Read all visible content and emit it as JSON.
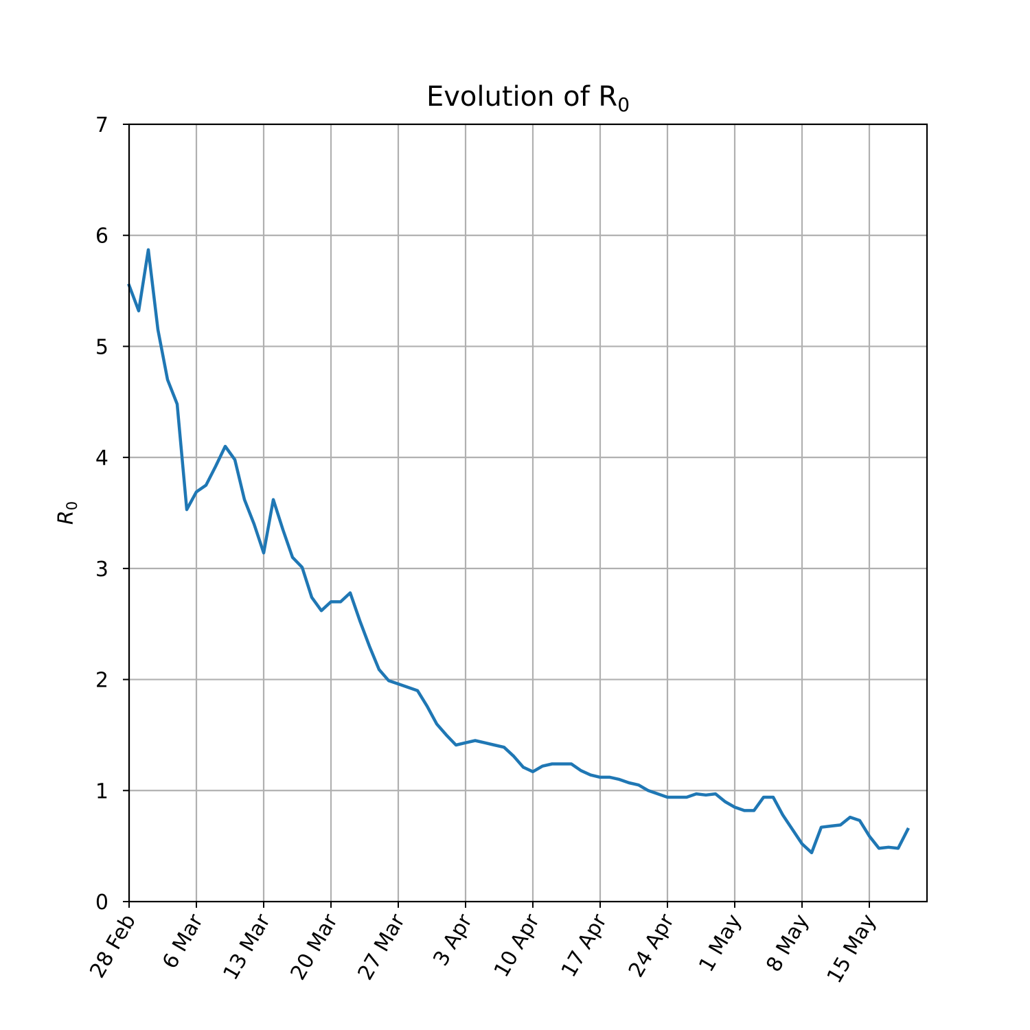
{
  "chart_data": {
    "type": "line",
    "title": "Evolution of R",
    "title_subscript": "0",
    "xlabel": "",
    "ylabel": "R",
    "ylabel_subscript": "0",
    "ylim": [
      0,
      7
    ],
    "xlim": [
      "2020-02-28",
      "2020-05-21"
    ],
    "grid": true,
    "legend": "none",
    "series_color": "#1f77b4",
    "y_ticks": [
      "0",
      "1",
      "2",
      "3",
      "4",
      "5",
      "6",
      "7"
    ],
    "x_ticks": [
      {
        "date": "2020-02-28",
        "label": "28 Feb"
      },
      {
        "date": "2020-03-06",
        "label": "6 Mar"
      },
      {
        "date": "2020-03-13",
        "label": "13 Mar"
      },
      {
        "date": "2020-03-20",
        "label": "20 Mar"
      },
      {
        "date": "2020-03-27",
        "label": "27 Mar"
      },
      {
        "date": "2020-04-03",
        "label": "3 Apr"
      },
      {
        "date": "2020-04-10",
        "label": "10 Apr"
      },
      {
        "date": "2020-04-17",
        "label": "17 Apr"
      },
      {
        "date": "2020-04-24",
        "label": "24 Apr"
      },
      {
        "date": "2020-05-01",
        "label": "1 May"
      },
      {
        "date": "2020-05-08",
        "label": "8 May"
      },
      {
        "date": "2020-05-15",
        "label": "15 May"
      }
    ],
    "series": [
      {
        "x": [
          "2020-02-28",
          "2020-02-29",
          "2020-03-01",
          "2020-03-02",
          "2020-03-03",
          "2020-03-04",
          "2020-03-05",
          "2020-03-06",
          "2020-03-07",
          "2020-03-08",
          "2020-03-09",
          "2020-03-10",
          "2020-03-11",
          "2020-03-12",
          "2020-03-13",
          "2020-03-14",
          "2020-03-15",
          "2020-03-16",
          "2020-03-17",
          "2020-03-18",
          "2020-03-19",
          "2020-03-20",
          "2020-03-21",
          "2020-03-22",
          "2020-03-23",
          "2020-03-24",
          "2020-03-25",
          "2020-03-26",
          "2020-03-27",
          "2020-03-28",
          "2020-03-29",
          "2020-03-30",
          "2020-03-31",
          "2020-04-01",
          "2020-04-02",
          "2020-04-03",
          "2020-04-04",
          "2020-04-05",
          "2020-04-06",
          "2020-04-07",
          "2020-04-08",
          "2020-04-09",
          "2020-04-10",
          "2020-04-11",
          "2020-04-12",
          "2020-04-13",
          "2020-04-14",
          "2020-04-15",
          "2020-04-16",
          "2020-04-17",
          "2020-04-18",
          "2020-04-19",
          "2020-04-20",
          "2020-04-21",
          "2020-04-22",
          "2020-04-23",
          "2020-04-24",
          "2020-04-25",
          "2020-04-26",
          "2020-04-27",
          "2020-04-28",
          "2020-04-29",
          "2020-04-30",
          "2020-05-01",
          "2020-05-02",
          "2020-05-03",
          "2020-05-04",
          "2020-05-05",
          "2020-05-06",
          "2020-05-07",
          "2020-05-08",
          "2020-05-09",
          "2020-05-10",
          "2020-05-11",
          "2020-05-12",
          "2020-05-13",
          "2020-05-14",
          "2020-05-15",
          "2020-05-16",
          "2020-05-17",
          "2020-05-18",
          "2020-05-19"
        ],
        "values": [
          5.55,
          5.32,
          5.87,
          5.15,
          4.7,
          4.48,
          3.53,
          3.69,
          3.75,
          3.92,
          4.1,
          3.98,
          3.62,
          3.4,
          3.14,
          3.62,
          3.35,
          3.1,
          3.01,
          2.74,
          2.62,
          2.7,
          2.7,
          2.78,
          2.53,
          2.3,
          2.09,
          1.99,
          1.96,
          1.93,
          1.9,
          1.76,
          1.6,
          1.5,
          1.41,
          1.43,
          1.45,
          1.43,
          1.41,
          1.39,
          1.31,
          1.21,
          1.17,
          1.22,
          1.24,
          1.24,
          1.24,
          1.18,
          1.14,
          1.12,
          1.12,
          1.1,
          1.07,
          1.05,
          1.0,
          0.97,
          0.94,
          0.94,
          0.94,
          0.97,
          0.96,
          0.97,
          0.9,
          0.85,
          0.82,
          0.82,
          0.94,
          0.94,
          0.78,
          0.65,
          0.52,
          0.44,
          0.67,
          0.68,
          0.69,
          0.76,
          0.73,
          0.59,
          0.48,
          0.49,
          0.48,
          0.65
        ]
      }
    ]
  }
}
